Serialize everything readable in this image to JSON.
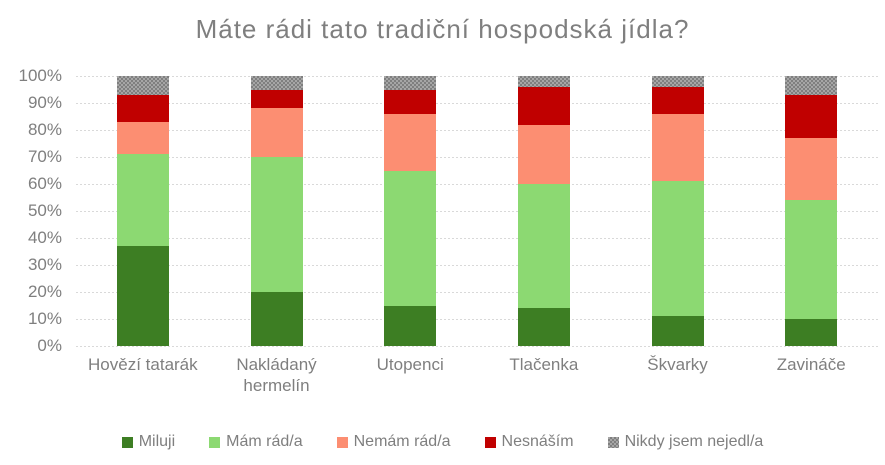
{
  "title": "Máte rádi tato tradiční hospodská jídla?",
  "chart_data": {
    "type": "bar",
    "stacked": true,
    "percent_stacked": true,
    "title": "Máte rádi tato tradiční hospodská jídla?",
    "categories": [
      "Hovězí tatarák",
      "Nakládaný hermelín",
      "Utopenci",
      "Tlačenka",
      "Škvarky",
      "Zavináče"
    ],
    "series": [
      {
        "name": "Miluji",
        "color": "#3D7E23",
        "pattern": "solid",
        "values": [
          37,
          20,
          15,
          14,
          11,
          10
        ]
      },
      {
        "name": "Mám rád/a",
        "color": "#8CD972",
        "pattern": "solid",
        "values": [
          34,
          50,
          50,
          46,
          50,
          44
        ]
      },
      {
        "name": "Nemám rád/a",
        "color": "#FC8E72",
        "pattern": "solid",
        "values": [
          12,
          18,
          21,
          22,
          25,
          23
        ]
      },
      {
        "name": "Nesnáším",
        "color": "#C00000",
        "pattern": "solid",
        "values": [
          10,
          7,
          9,
          14,
          10,
          16
        ]
      },
      {
        "name": "Nikdy jsem nejedl/a",
        "color": "#7F7F7F",
        "pattern": "checker",
        "pattern_color2": "#A6A6A6",
        "values": [
          7,
          5,
          5,
          4,
          4,
          7
        ]
      }
    ],
    "xlabel": "",
    "ylabel": "",
    "ylim": [
      0,
      100
    ],
    "y_ticks": [
      "0%",
      "10%",
      "20%",
      "30%",
      "40%",
      "50%",
      "60%",
      "70%",
      "80%",
      "90%",
      "100%"
    ],
    "grid": "horizontal-dashed",
    "legend_position": "bottom"
  },
  "colors": {
    "text": "#7F7F7F",
    "gridline": "#D9D9D9",
    "background": "#FFFFFF"
  }
}
